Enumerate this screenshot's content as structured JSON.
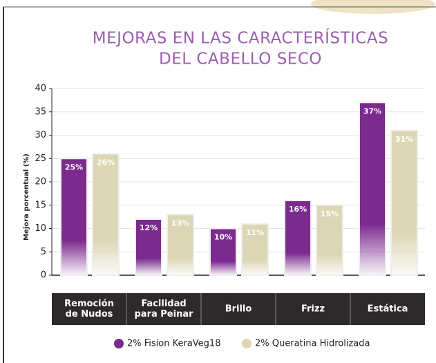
{
  "chart_data": {
    "type": "bar",
    "title": [
      "MEJORAS EN LAS CARACTERÍSTICAS",
      "DEL CABELLO SECO"
    ],
    "y_label": "Mejora porcentual (%)",
    "categories": [
      [
        "Remoción",
        "de Nudos"
      ],
      [
        "Facilidad",
        "para Peinar"
      ],
      [
        "Brillo"
      ],
      [
        "Frizz"
      ],
      [
        "Estática"
      ]
    ],
    "series": [
      {
        "name": "2% Fision KeraVeg18",
        "color": "#7b2a8e",
        "values": [
          25,
          12,
          10,
          16,
          37
        ],
        "value_labels": [
          "25%",
          "12%",
          "10%",
          "16%",
          "37%"
        ]
      },
      {
        "name": "2% Queratina Hidrolizada",
        "color": "#dcd6b4",
        "values": [
          26,
          13,
          11,
          15,
          31
        ],
        "value_labels": [
          "26%",
          "13%",
          "11%",
          "15%",
          "31%"
        ]
      }
    ],
    "ylim": [
      0,
      40
    ],
    "yticks": [
      0,
      5,
      10,
      15,
      20,
      25,
      30,
      35,
      40
    ],
    "grid": true
  }
}
